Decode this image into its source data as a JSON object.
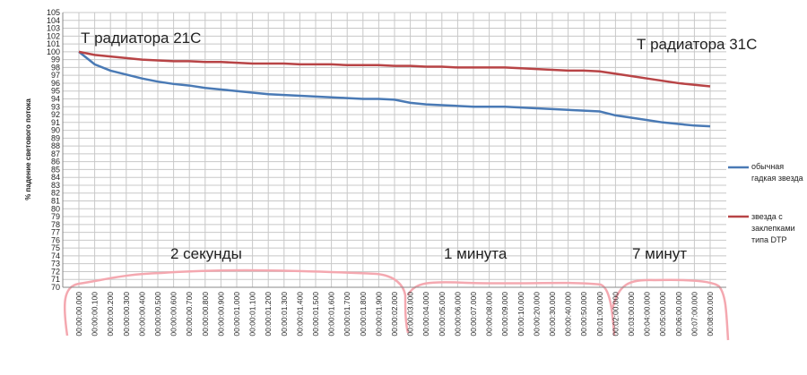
{
  "chart_data": {
    "type": "line",
    "y_label": "% падение светового потока",
    "categories": [
      "00:00:00.000",
      "00:00:00.100",
      "00:00:00.200",
      "00:00:00.300",
      "00:00:00.400",
      "00:00:00.500",
      "00:00:00.600",
      "00:00:00.700",
      "00:00:00.800",
      "00:00:00.900",
      "00:00:01.000",
      "00:00:01.100",
      "00:00:01.200",
      "00:00:01.300",
      "00:00:01.400",
      "00:00:01.500",
      "00:00:01.600",
      "00:00:01.700",
      "00:00:01.800",
      "00:00:01.900",
      "00:00:02.000",
      "00:00:03.000",
      "00:00:04.000",
      "00:00:05.000",
      "00:00:06.000",
      "00:00:07.000",
      "00:00:08.000",
      "00:00:09.000",
      "00:00:10.000",
      "00:00:20.000",
      "00:00:30.000",
      "00:00:40.000",
      "00:00:50.000",
      "00:01:00.000",
      "00:02:00.000",
      "00:03:00.000",
      "00:04:00.000",
      "00:05:00.000",
      "00:06:00.000",
      "00:07:00.000",
      "00:08:00.000"
    ],
    "series": [
      {
        "name": "обычная гадкая звезда",
        "color": "#4a7ab5",
        "values": [
          100,
          98.4,
          97.6,
          97.1,
          96.6,
          96.2,
          95.9,
          95.7,
          95.4,
          95.2,
          95.0,
          94.8,
          94.6,
          94.5,
          94.4,
          94.3,
          94.2,
          94.1,
          94.0,
          94.0,
          93.9,
          93.5,
          93.3,
          93.2,
          93.1,
          93.0,
          93.0,
          93.0,
          92.9,
          92.8,
          92.7,
          92.6,
          92.5,
          92.4,
          91.9,
          91.6,
          91.3,
          91.0,
          90.8,
          90.6,
          90.5
        ]
      },
      {
        "name": "звезда с заклепками типа DTP",
        "color": "#b84446",
        "values": [
          100,
          99.6,
          99.4,
          99.2,
          99.0,
          98.9,
          98.8,
          98.8,
          98.7,
          98.7,
          98.6,
          98.5,
          98.5,
          98.5,
          98.4,
          98.4,
          98.4,
          98.3,
          98.3,
          98.3,
          98.2,
          98.2,
          98.1,
          98.1,
          98.0,
          98.0,
          98.0,
          98.0,
          97.9,
          97.8,
          97.7,
          97.6,
          97.6,
          97.5,
          97.2,
          96.9,
          96.6,
          96.3,
          96.0,
          95.8,
          95.6
        ]
      }
    ],
    "ylim": [
      70,
      105
    ],
    "yticks": [
      70,
      71,
      72,
      73,
      74,
      75,
      76,
      77,
      78,
      79,
      80,
      81,
      82,
      83,
      84,
      85,
      86,
      87,
      88,
      89,
      90,
      91,
      92,
      93,
      94,
      95,
      96,
      97,
      98,
      99,
      100,
      101,
      102,
      103,
      104,
      105
    ],
    "grid": true,
    "legend": "right",
    "annotations": [
      "Т радиатора 21С",
      "Т радиатора 31С",
      "2 секунды",
      "1 минута",
      "7 минут"
    ]
  }
}
